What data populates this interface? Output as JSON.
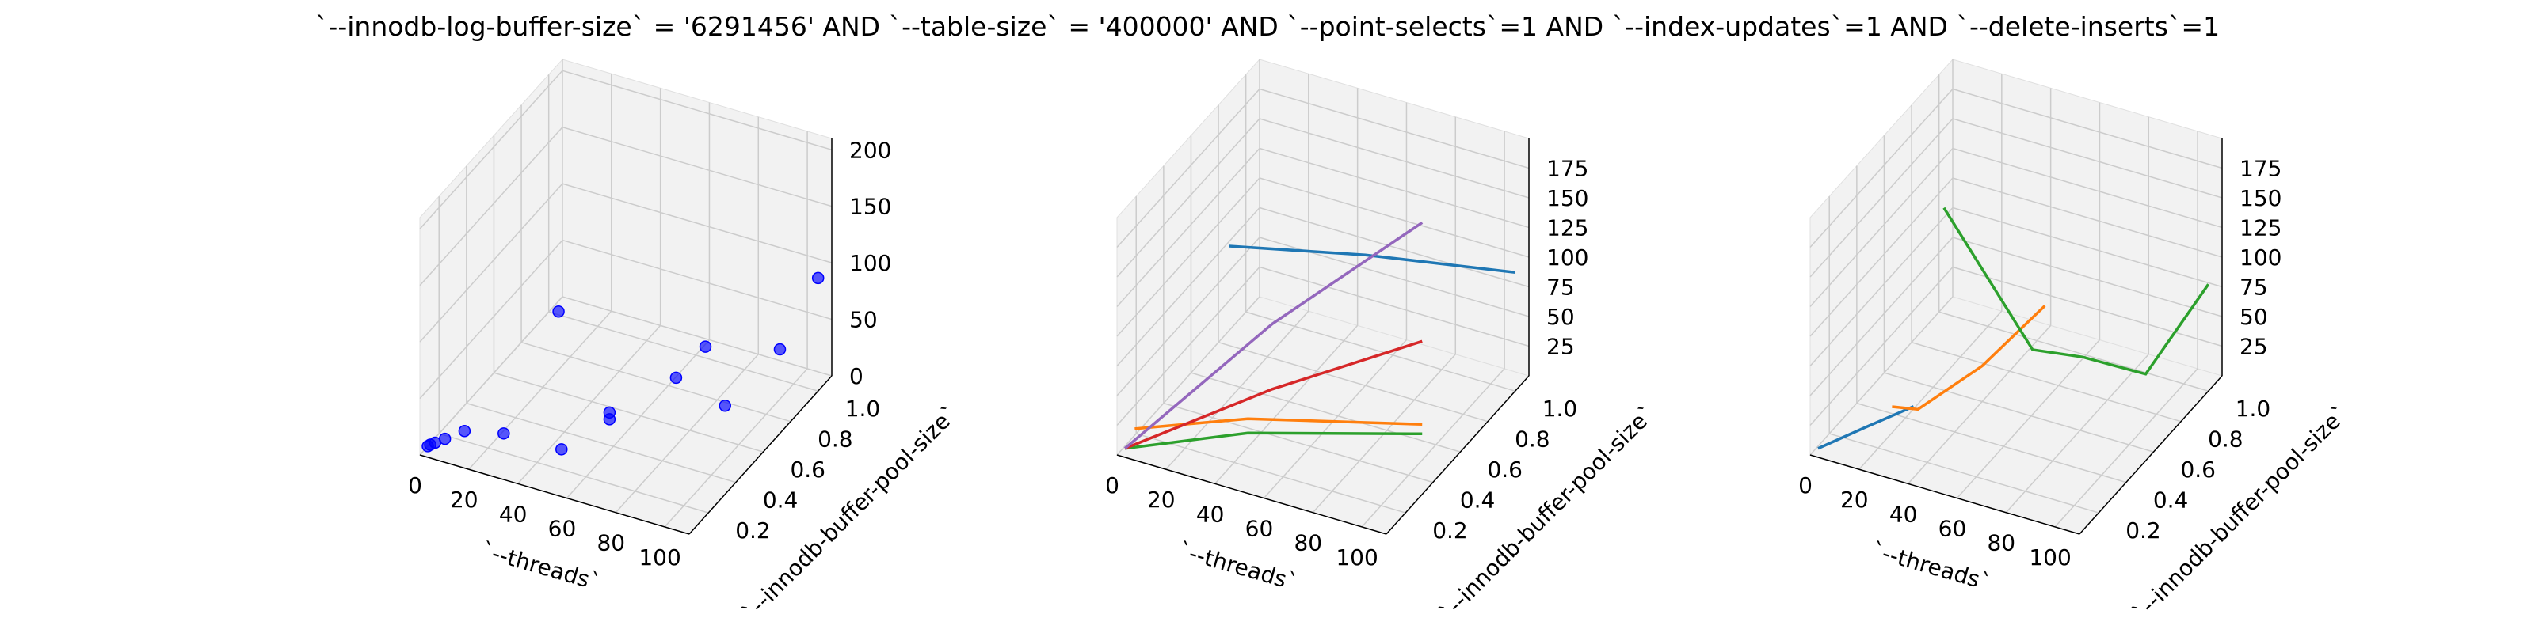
{
  "figure": {
    "title": "`--innodb-log-buffer-size` = '6291456' AND `--table-size` = '400000'  AND `--point-selects`=1 AND `--index-updates`=1 AND `--delete-inserts`=1"
  },
  "colors": {
    "pane": "#f2f2f2",
    "grid": "#cccccc",
    "scatter": "#0000ff",
    "series": [
      "#1f77b4",
      "#ff7f0e",
      "#2ca02c",
      "#d62728",
      "#9467bd"
    ]
  },
  "chart_data": [
    {
      "type": "scatter",
      "title": "",
      "xlabel": "`--threads`",
      "ylabel": "`--innodb-buffer-pool-size`",
      "zlabel": "",
      "xlim": [
        0,
        110
      ],
      "ylim": [
        0.06,
        1.1
      ],
      "zlim": [
        0,
        210
      ],
      "xticks": [
        0,
        20,
        40,
        60,
        80,
        100
      ],
      "yticks": [
        0.2,
        0.4,
        0.6,
        0.8,
        1.0
      ],
      "zticks": [
        0,
        50,
        100,
        150,
        200
      ],
      "grid": true,
      "points": [
        {
          "x": 1,
          "y": 0.1,
          "z": 3
        },
        {
          "x": 2,
          "y": 0.1,
          "z": 5
        },
        {
          "x": 4,
          "y": 0.1,
          "z": 8
        },
        {
          "x": 8,
          "y": 0.1,
          "z": 14
        },
        {
          "x": 16,
          "y": 0.1,
          "z": 26
        },
        {
          "x": 32,
          "y": 0.1,
          "z": 34
        },
        {
          "x": 32,
          "y": 0.5,
          "z": 88
        },
        {
          "x": 50,
          "y": 0.2,
          "z": 18
        },
        {
          "x": 64,
          "y": 0.3,
          "z": 40
        },
        {
          "x": 64,
          "y": 0.3,
          "z": 46
        },
        {
          "x": 64,
          "y": 1.0,
          "z": 10
        },
        {
          "x": 80,
          "y": 0.5,
          "z": 60
        },
        {
          "x": 100,
          "y": 0.5,
          "z": 48
        },
        {
          "x": 100,
          "y": 0.9,
          "z": 44
        },
        {
          "x": 110,
          "y": 1.0,
          "z": 100
        }
      ]
    },
    {
      "type": "line",
      "title": "",
      "xlabel": "`--threads`",
      "ylabel": "`--innodb-buffer-pool-size`",
      "zlabel": "",
      "xlim": [
        0,
        110
      ],
      "ylim": [
        0.06,
        1.1
      ],
      "zlim": [
        0,
        200
      ],
      "xticks": [
        0,
        20,
        40,
        60,
        80,
        100
      ],
      "yticks": [
        0.2,
        0.4,
        0.6,
        0.8,
        1.0
      ],
      "zticks": [
        25,
        50,
        75,
        100,
        125,
        150,
        175
      ],
      "grid": true,
      "series": [
        {
          "x": [
            10,
            60,
            110
          ],
          "y": [
            0.7,
            0.8,
            1.0
          ],
          "z": [
            100,
            110,
            100
          ]
        },
        {
          "x": [
            5,
            40,
            100
          ],
          "y": [
            0.1,
            0.3,
            0.5
          ],
          "z": [
            20,
            24,
            30
          ]
        },
        {
          "x": [
            1,
            40,
            100
          ],
          "y": [
            0.1,
            0.3,
            0.5
          ],
          "z": [
            1,
            12,
            22
          ]
        },
        {
          "x": [
            1,
            50,
            100
          ],
          "y": [
            0.1,
            0.3,
            0.5
          ],
          "z": [
            1,
            55,
            100
          ]
        },
        {
          "x": [
            1,
            50,
            100
          ],
          "y": [
            0.1,
            0.3,
            0.5
          ],
          "z": [
            1,
            110,
            200
          ]
        }
      ]
    },
    {
      "type": "line",
      "title": "",
      "xlabel": "`--threads`",
      "ylabel": "`--innodb-buffer-pool-size`",
      "zlabel": "",
      "xlim": [
        0,
        110
      ],
      "ylim": [
        0.06,
        1.1
      ],
      "zlim": [
        0,
        200
      ],
      "xticks": [
        0,
        20,
        40,
        60,
        80,
        100
      ],
      "yticks": [
        0.2,
        0.4,
        0.6,
        0.8,
        1.0
      ],
      "zticks": [
        25,
        50,
        75,
        100,
        125,
        150,
        175
      ],
      "grid": true,
      "series": [
        {
          "x": [
            1,
            20,
            40
          ],
          "y": [
            0.1,
            0.1,
            0.1
          ],
          "z": [
            1,
            30,
            60
          ]
        },
        {
          "x": [
            20,
            25,
            40,
            60
          ],
          "y": [
            0.3,
            0.4,
            0.6,
            0.7
          ],
          "z": [
            22,
            10,
            30,
            80
          ]
        },
        {
          "x": [
            30,
            55,
            70,
            90,
            110
          ],
          "y": [
            0.5,
            0.7,
            0.8,
            0.9,
            1.0
          ],
          "z": [
            170,
            40,
            30,
            15,
            90
          ]
        }
      ]
    }
  ]
}
